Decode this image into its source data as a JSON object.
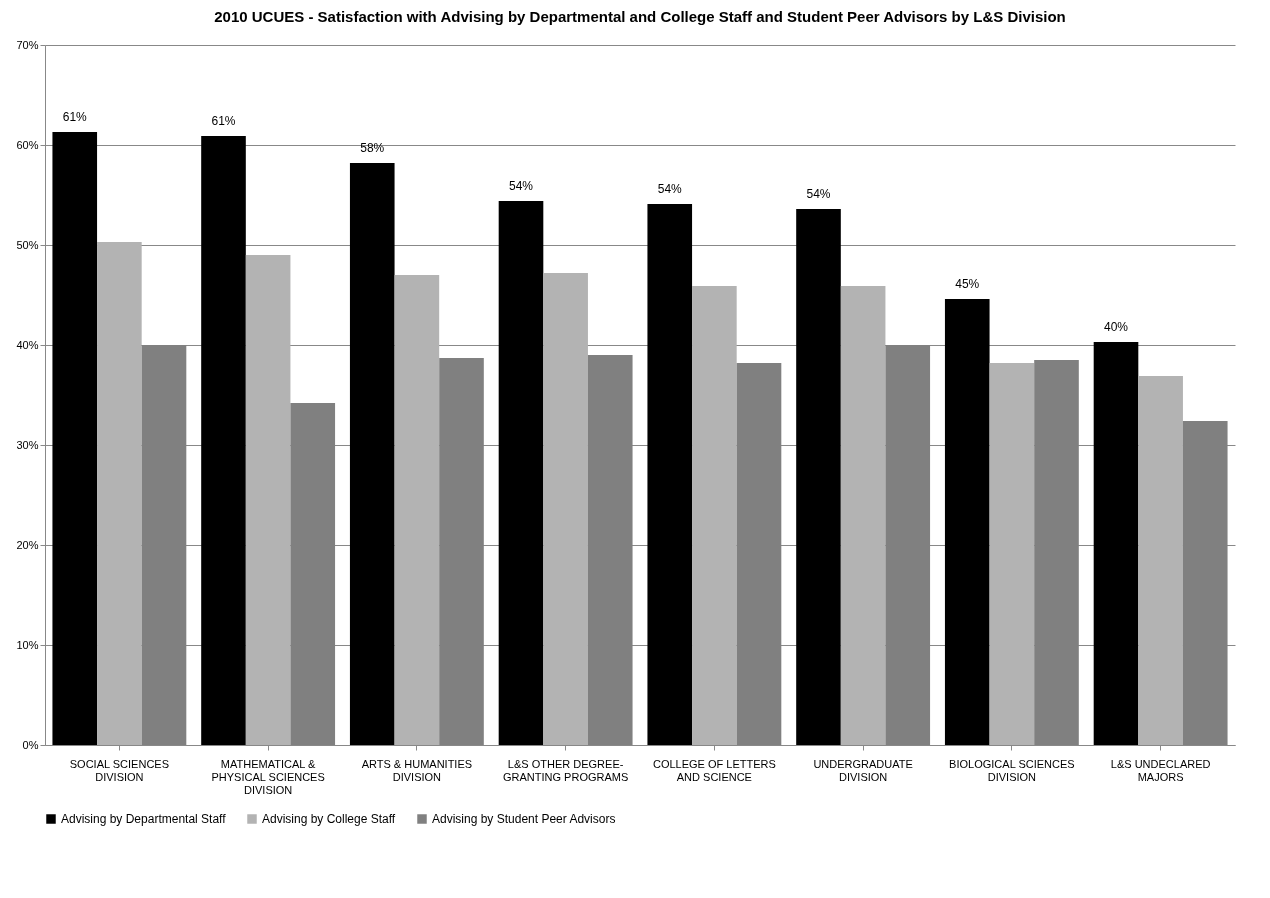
{
  "chart_data": {
    "type": "bar",
    "title": "2010 UCUES - Satisfaction with Advising by Departmental and College Staff and Student Peer Advisors by L&S Division",
    "categories": [
      "SOCIAL SCIENCES DIVISION",
      "MATHEMATICAL & PHYSICAL SCIENCES DIVISION",
      "ARTS & HUMANITIES DIVISION",
      "L&S OTHER DEGREE-GRANTING PROGRAMS",
      "COLLEGE OF LETTERS AND SCIENCE",
      "UNDERGRADUATE DIVISION",
      "BIOLOGICAL SCIENCES DIVISION",
      "L&S UNDECLARED MAJORS"
    ],
    "series": [
      {
        "name": "Advising by Departmental Staff",
        "color": "#000000",
        "values": [
          61.3,
          60.9,
          58.2,
          54.4,
          54.1,
          53.6,
          44.6,
          40.3
        ],
        "value_labels": [
          "61%",
          "61%",
          "58%",
          "54%",
          "54%",
          "54%",
          "45%",
          "40%"
        ]
      },
      {
        "name": "Advising by College Staff",
        "color": "#b3b3b3",
        "values": [
          50.3,
          49.0,
          47.0,
          47.2,
          45.9,
          45.9,
          38.2,
          36.9
        ]
      },
      {
        "name": "Advising by Student Peer Advisors",
        "color": "#808080",
        "values": [
          40.0,
          34.2,
          38.7,
          39.0,
          38.2,
          40.0,
          38.5,
          32.4
        ]
      }
    ],
    "ylim": [
      0,
      70
    ],
    "yticks": [
      {
        "value": 0,
        "label": "0%"
      },
      {
        "value": 10,
        "label": "10%"
      },
      {
        "value": 20,
        "label": "20%"
      },
      {
        "value": 30,
        "label": "30%"
      },
      {
        "value": 40,
        "label": "40%"
      },
      {
        "value": 50,
        "label": "50%"
      },
      {
        "value": 60,
        "label": "60%"
      },
      {
        "value": 70,
        "label": "70%"
      }
    ],
    "grid": "y",
    "legend": "bottom"
  }
}
